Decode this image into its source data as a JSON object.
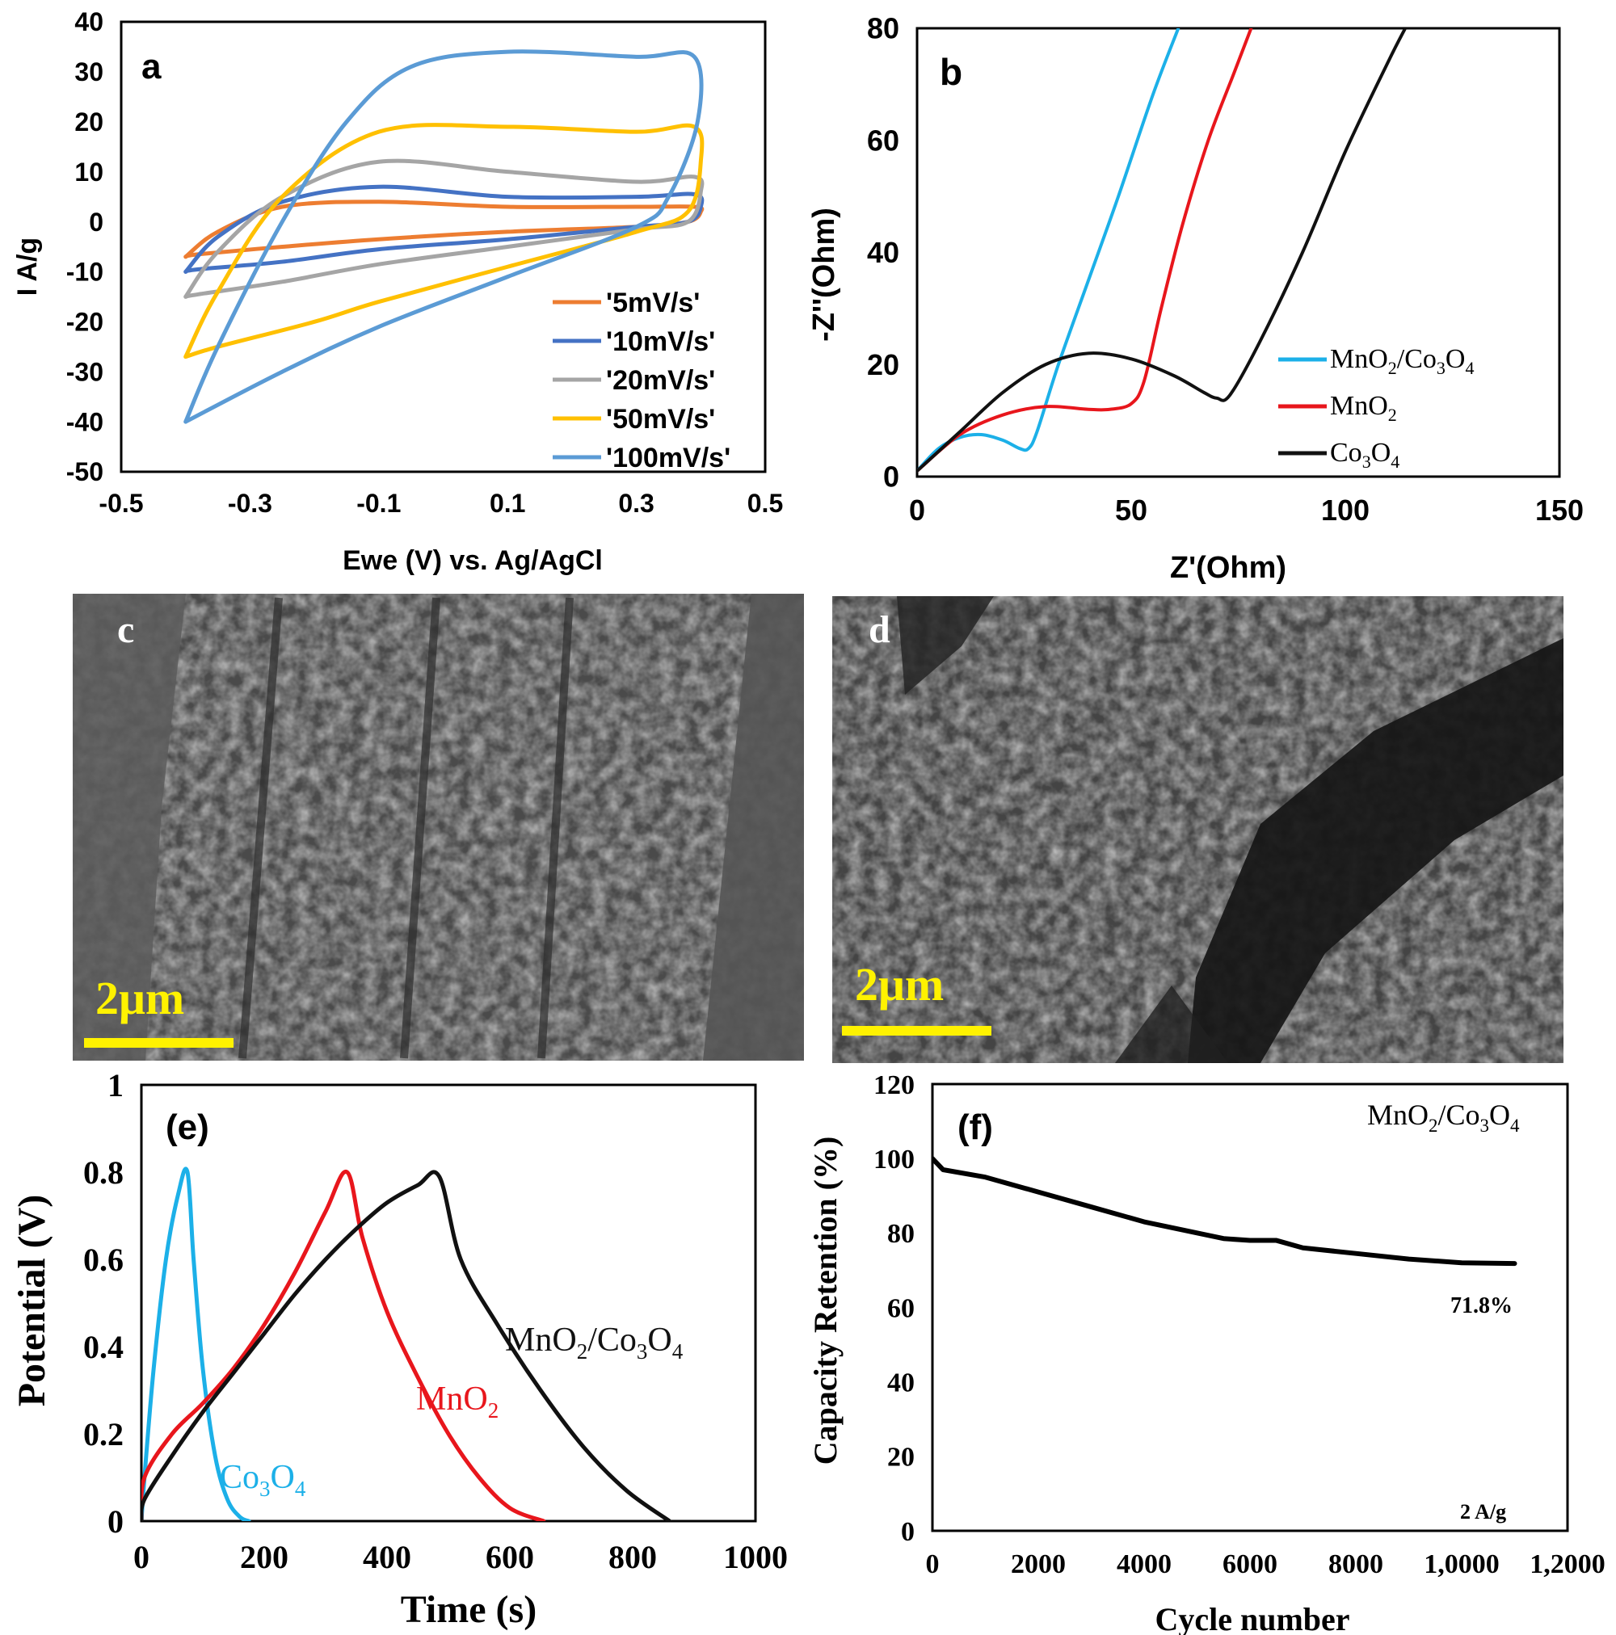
{
  "chart_data": [
    {
      "panel": "a",
      "type": "line",
      "title": "",
      "xlabel": "Ewe (V) vs. Ag/AgCl",
      "ylabel": "I  A/g",
      "xlim": [
        -0.5,
        0.5
      ],
      "ylim": [
        -50,
        40
      ],
      "xticks": [
        -0.5,
        -0.3,
        -0.1,
        0.1,
        0.3,
        0.5
      ],
      "xtick_labels": [
        "-0.5",
        "-0.3",
        "-0.1",
        "0.1",
        "0.3",
        "0.5"
      ],
      "yticks": [
        40,
        30,
        20,
        10,
        0,
        -10,
        -20,
        -30,
        -40,
        -50
      ],
      "ytick_labels": [
        "40",
        "30",
        "20",
        "10",
        "0",
        "-10",
        "-20",
        "-30",
        "-40",
        "-50"
      ],
      "legend_position": "bottom-right",
      "series": [
        {
          "name": "'5mV/s'",
          "color": "#ED7D31",
          "x": [
            -0.4,
            -0.35,
            -0.25,
            -0.1,
            0.1,
            0.3,
            0.39,
            0.4,
            0.38,
            0.3,
            0.1,
            -0.1,
            -0.25,
            -0.38,
            -0.4
          ],
          "y": [
            -7,
            -2,
            3,
            4,
            3,
            3,
            3,
            2,
            0,
            -1,
            -2,
            -3.5,
            -5,
            -6.5,
            -7
          ]
        },
        {
          "name": "'10mV/s'",
          "color": "#4472C4",
          "x": [
            -0.4,
            -0.35,
            -0.25,
            -0.1,
            0.1,
            0.3,
            0.39,
            0.4,
            0.38,
            0.3,
            0.1,
            -0.1,
            -0.25,
            -0.38,
            -0.4
          ],
          "y": [
            -10,
            -3,
            4,
            7,
            5,
            5,
            5.5,
            3,
            0,
            -1,
            -3.5,
            -5.5,
            -8,
            -9.5,
            -10
          ]
        },
        {
          "name": "'20mV/s'",
          "color": "#A5A5A5",
          "x": [
            -0.4,
            -0.35,
            -0.25,
            -0.1,
            0.1,
            0.3,
            0.39,
            0.4,
            0.38,
            0.3,
            0.1,
            -0.1,
            -0.25,
            -0.38,
            -0.4
          ],
          "y": [
            -15,
            -6,
            5,
            12,
            10,
            8,
            9,
            6,
            0,
            -1.5,
            -5,
            -8.5,
            -12,
            -14.5,
            -15
          ]
        },
        {
          "name": "'50mV/s'",
          "color": "#FFC000",
          "x": [
            -0.4,
            -0.35,
            -0.25,
            -0.1,
            0.1,
            0.3,
            0.39,
            0.4,
            0.38,
            0.3,
            0.1,
            -0.1,
            -0.2,
            -0.35,
            -0.4
          ],
          "y": [
            -27,
            -14,
            5,
            18,
            19,
            18,
            19,
            12,
            2,
            -2,
            -9,
            -16,
            -20,
            -25,
            -27
          ]
        },
        {
          "name": "'100mV/s'",
          "color": "#5B9BD5",
          "x": [
            -0.4,
            -0.35,
            -0.25,
            -0.15,
            -0.05,
            0.1,
            0.3,
            0.39,
            0.395,
            0.35,
            0.3,
            0.1,
            -0.1,
            -0.25,
            -0.4
          ],
          "y": [
            -40,
            -25,
            0,
            20,
            31,
            34,
            33,
            33,
            20,
            5,
            -1,
            -11,
            -21,
            -30,
            -40
          ]
        }
      ]
    },
    {
      "panel": "b",
      "type": "line",
      "title": "",
      "xlabel": "Z'(Ohm)",
      "ylabel": "-Z''(Ohm)",
      "xlim": [
        0,
        150
      ],
      "ylim": [
        0,
        80
      ],
      "xticks": [
        0,
        50,
        100,
        150
      ],
      "xtick_labels": [
        "0",
        "50",
        "100",
        "150"
      ],
      "yticks": [
        0,
        20,
        40,
        60,
        80
      ],
      "ytick_labels": [
        "0",
        "20",
        "40",
        "60",
        "80"
      ],
      "legend_position": "bottom-right",
      "series": [
        {
          "name": "MnO2/Co3O4",
          "color": "#1CB0E8",
          "x": [
            0,
            5,
            10,
            15,
            20,
            24,
            26,
            28,
            33,
            40,
            47,
            55,
            61
          ],
          "y": [
            1,
            5,
            7,
            7.5,
            6.5,
            5,
            5,
            8,
            20,
            35,
            50,
            68,
            80
          ]
        },
        {
          "name": "MnO2",
          "color": "#E8161C",
          "x": [
            0,
            10,
            20,
            30,
            40,
            45,
            50,
            53,
            57,
            62,
            68,
            74,
            78
          ],
          "y": [
            1,
            7.5,
            11,
            12.5,
            12,
            12,
            13,
            17,
            30,
            45,
            60,
            72,
            80
          ]
        },
        {
          "name": "Co3O4",
          "color": "#111111",
          "x": [
            0,
            10,
            20,
            30,
            40,
            50,
            60,
            67,
            70,
            73,
            80,
            90,
            100,
            110,
            114
          ],
          "y": [
            1,
            8,
            15,
            20,
            22,
            21,
            18,
            15,
            14,
            14.5,
            24,
            40,
            58,
            74,
            80
          ]
        }
      ]
    },
    {
      "panel": "e",
      "type": "line",
      "title": "",
      "xlabel": "Time (s)",
      "ylabel": "Potential (V)",
      "xlim": [
        0,
        1000
      ],
      "ylim": [
        0,
        1
      ],
      "xticks": [
        0,
        200,
        400,
        600,
        800,
        1000
      ],
      "xtick_labels": [
        "0",
        "200",
        "400",
        "600",
        "800",
        "1000"
      ],
      "yticks": [
        0,
        0.2,
        0.4,
        0.6,
        0.8,
        1
      ],
      "ytick_labels": [
        "0",
        "0.2",
        "0.4",
        "0.6",
        "0.8",
        "1"
      ],
      "series": [
        {
          "name": "Co3O4",
          "color": "#1CB0E8",
          "x": [
            0,
            5,
            20,
            40,
            60,
            75,
            85,
            100,
            120,
            140,
            160,
            175
          ],
          "y": [
            0,
            0.1,
            0.35,
            0.6,
            0.75,
            0.8,
            0.6,
            0.35,
            0.15,
            0.05,
            0.01,
            0
          ]
        },
        {
          "name": "MnO2",
          "color": "#E8161C",
          "x": [
            0,
            5,
            50,
            100,
            150,
            200,
            250,
            300,
            335,
            360,
            400,
            450,
            500,
            550,
            600,
            655
          ],
          "y": [
            0,
            0.1,
            0.2,
            0.27,
            0.35,
            0.45,
            0.57,
            0.71,
            0.8,
            0.65,
            0.48,
            0.33,
            0.2,
            0.1,
            0.03,
            0
          ]
        },
        {
          "name": "MnO2/Co3O4",
          "color": "#111111",
          "x": [
            0,
            5,
            50,
            100,
            150,
            200,
            250,
            300,
            350,
            400,
            450,
            485,
            520,
            580,
            650,
            720,
            790,
            860
          ],
          "y": [
            0,
            0.05,
            0.15,
            0.25,
            0.34,
            0.43,
            0.52,
            0.6,
            0.67,
            0.73,
            0.77,
            0.79,
            0.6,
            0.45,
            0.3,
            0.17,
            0.07,
            0
          ]
        }
      ]
    },
    {
      "panel": "f",
      "type": "line",
      "title": "",
      "xlabel": "Cycle number",
      "ylabel": "Capacity Retention (%)",
      "xlim": [
        0,
        12000
      ],
      "ylim": [
        0,
        120
      ],
      "xticks": [
        0,
        2000,
        4000,
        6000,
        8000,
        10000,
        12000
      ],
      "xtick_labels": [
        "0",
        "2000",
        "4000",
        "6000",
        "8000",
        "1,0000",
        "1,2000"
      ],
      "yticks": [
        0,
        20,
        40,
        60,
        80,
        100,
        120
      ],
      "ytick_labels": [
        "0",
        "20",
        "40",
        "60",
        "80",
        "100",
        "120"
      ],
      "series": [
        {
          "name": "MnO2/Co3O4",
          "color": "#000000",
          "x": [
            0,
            200,
            1000,
            2000,
            3000,
            4000,
            5000,
            5500,
            6000,
            6500,
            7000,
            8000,
            9000,
            10000,
            11000
          ],
          "y": [
            100,
            97,
            95,
            91,
            87,
            83,
            80,
            78.5,
            78,
            78,
            76,
            74.5,
            73,
            72,
            71.8
          ]
        }
      ]
    }
  ],
  "panels": {
    "a": {
      "letter": "a"
    },
    "b": {
      "letter": "b"
    },
    "c": {
      "letter": "c",
      "scale_bar": "2μm"
    },
    "d": {
      "letter": "d",
      "scale_bar": "2μm"
    },
    "e": {
      "letter": "(e)"
    },
    "f": {
      "letter": "(f)",
      "retention_label": "71.8%",
      "current_label": "2 A/g"
    }
  },
  "labels": {
    "b_legend": [
      {
        "base": "MnO",
        "sub1": "2",
        "mid": "/Co",
        "sub2": "3",
        "mid2": "O",
        "sub3": "4"
      },
      {
        "base": "MnO",
        "sub1": "2"
      },
      {
        "base": "Co",
        "sub1": "3",
        "mid": "O",
        "sub2": "4"
      }
    ],
    "e_composite": {
      "base": "MnO",
      "sub1": "2",
      "mid": "/Co",
      "sub2": "3",
      "mid2": "O",
      "sub3": "4"
    },
    "e_mno2": {
      "base": "MnO",
      "sub1": "2"
    },
    "e_co3o4": {
      "base": "Co",
      "sub1": "3",
      "mid": "O",
      "sub2": "4"
    },
    "f_title": {
      "base": "MnO",
      "sub1": "2",
      "mid": "/Co",
      "sub2": "3",
      "mid2": "O",
      "sub3": "4"
    }
  },
  "colors": {
    "axis": "#000000",
    "scale_bar": "#FFF200",
    "sem_bg": "#4a4a4a"
  }
}
